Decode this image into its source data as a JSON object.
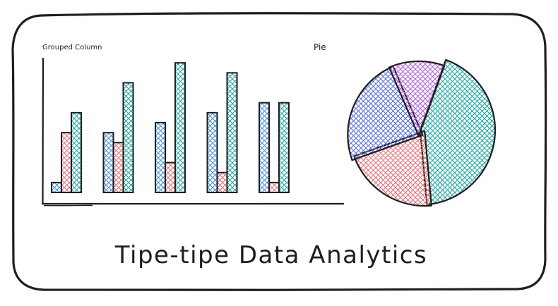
{
  "card": {
    "title": "Tipe-tipe Data Analytics"
  },
  "chart_data": [
    {
      "type": "bar",
      "title": "Grouped Column",
      "categories": [
        "",
        "",
        "",
        "",
        ""
      ],
      "series": [
        {
          "color": "#4a90d9",
          "values": [
            1,
            6,
            7,
            8,
            9
          ]
        },
        {
          "color": "#e8737a",
          "values": [
            6,
            5,
            3,
            2,
            1
          ]
        },
        {
          "color": "#20a8a4",
          "values": [
            8,
            11,
            13,
            12,
            9
          ]
        }
      ],
      "ylim": [
        0,
        14
      ],
      "grid": false
    },
    {
      "type": "pie",
      "title": "Pie",
      "slices": [
        {
          "color": "#20a8a4",
          "value": 43
        },
        {
          "color": "#e8737a",
          "value": 21
        },
        {
          "color": "#5c6ee0",
          "value": 24
        },
        {
          "color": "#b45ee0",
          "value": 12
        }
      ]
    }
  ],
  "colors": {
    "stroke": "#1e1e1e",
    "background": "#ffffff"
  }
}
